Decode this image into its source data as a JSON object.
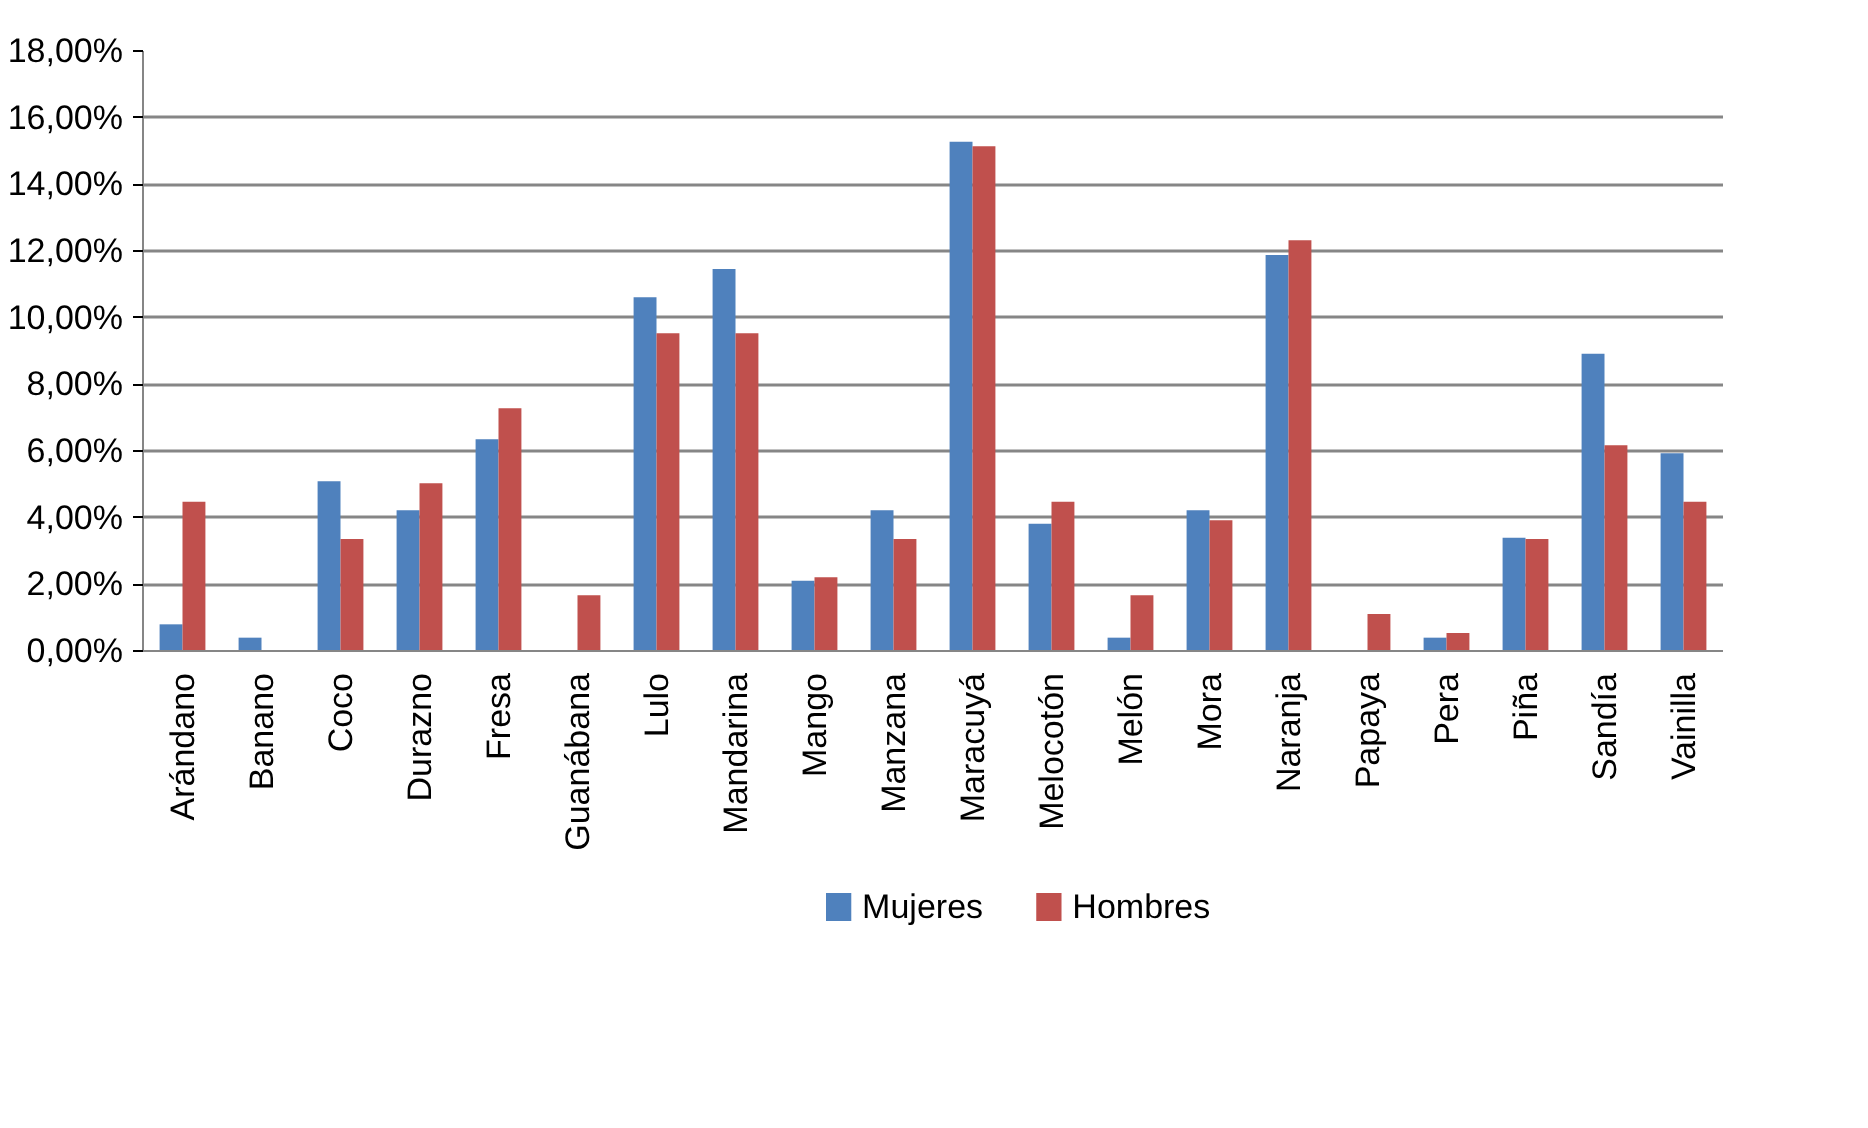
{
  "chart_data": {
    "type": "bar",
    "categories": [
      "Arándano",
      "Banano",
      "Coco",
      "Durazno",
      "Fresa",
      "Guanábana",
      "Lulo",
      "Mandarina",
      "Mango",
      "Manzana",
      "Maracuyá",
      "Melocotón",
      "Melón",
      "Mora",
      "Naranja",
      "Papaya",
      "Pera",
      "Piña",
      "Sandía",
      "Vainilla"
    ],
    "series": [
      {
        "name": "Mujeres",
        "color": "#4f81bd",
        "values": [
          0.8,
          0.4,
          5.09,
          4.22,
          6.35,
          null,
          10.61,
          11.46,
          2.11,
          4.22,
          15.28,
          3.82,
          0.4,
          4.22,
          11.88,
          null,
          0.4,
          3.4,
          8.92,
          5.93
        ]
      },
      {
        "name": "Hombres",
        "color": "#c0504d",
        "values": [
          4.48,
          null,
          3.36,
          5.03,
          7.28,
          1.67,
          9.53,
          9.53,
          2.21,
          3.36,
          15.14,
          4.48,
          1.67,
          3.92,
          12.32,
          1.11,
          0.54,
          3.36,
          6.17,
          4.48
        ]
      }
    ],
    "ylim": [
      0,
      18
    ],
    "yticks": [
      {
        "value": 0,
        "label": "0,00%"
      },
      {
        "value": 2,
        "label": "2,00%"
      },
      {
        "value": 4,
        "label": "4,00%"
      },
      {
        "value": 6,
        "label": "6,00%"
      },
      {
        "value": 8,
        "label": "8,00%"
      },
      {
        "value": 10,
        "label": "10,00%"
      },
      {
        "value": 12,
        "label": "12,00%"
      },
      {
        "value": 14,
        "label": "14,00%"
      },
      {
        "value": 16,
        "label": "16,00%"
      },
      {
        "value": 18,
        "label": "18,00%"
      }
    ],
    "grid": "y",
    "legend": "bottom"
  }
}
